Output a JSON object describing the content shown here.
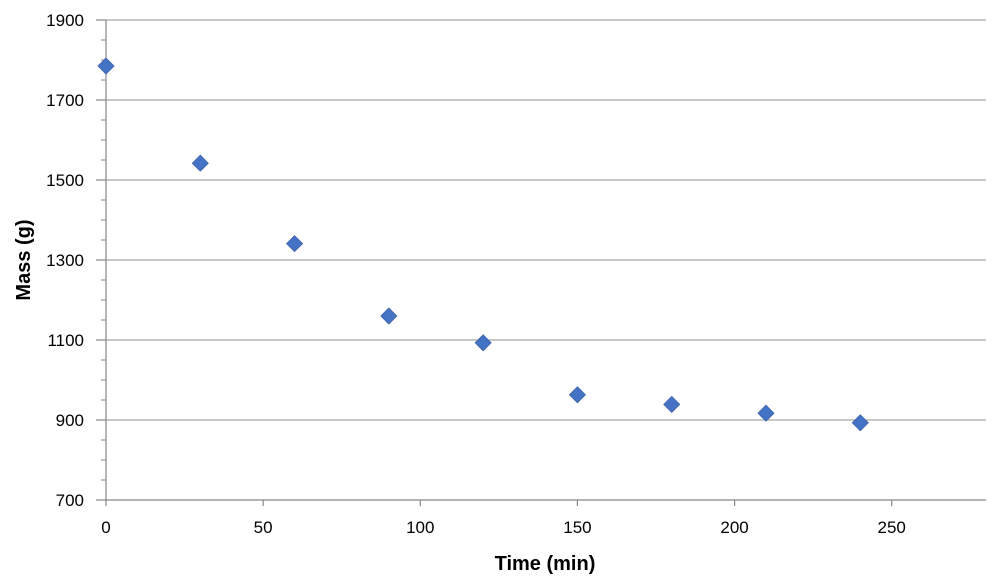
{
  "chart_data": {
    "type": "scatter",
    "title": "",
    "xlabel": "Time (min)",
    "ylabel": "Mass (g)",
    "xlim": [
      0,
      280
    ],
    "ylim": [
      700,
      1900
    ],
    "x_ticks": [
      0,
      50,
      100,
      150,
      200,
      250
    ],
    "y_ticks": [
      700,
      900,
      1100,
      1300,
      1500,
      1700,
      1900
    ],
    "grid": "horizontal",
    "marker": "diamond",
    "series": [
      {
        "color": "#4472C4",
        "x": [
          0,
          30,
          60,
          90,
          120,
          150,
          180,
          210,
          240
        ],
        "y": [
          1785,
          1542,
          1341,
          1160,
          1093,
          963,
          939,
          917,
          893
        ]
      }
    ]
  }
}
